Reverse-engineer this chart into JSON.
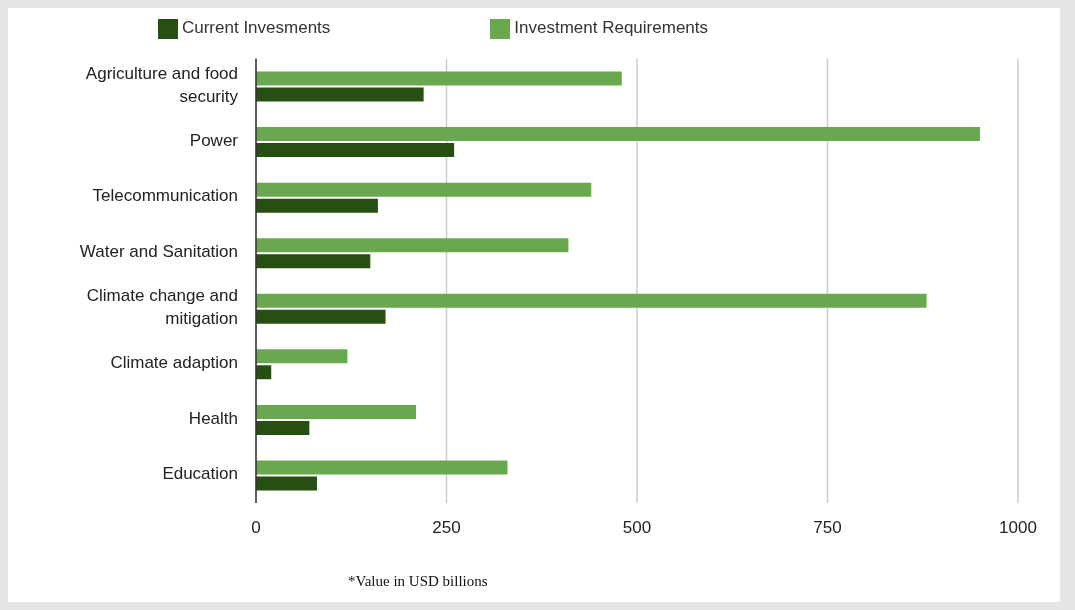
{
  "chart_data": {
    "type": "bar",
    "orientation": "horizontal",
    "categories": [
      "Agriculture and food security",
      "Power",
      "Telecommunication",
      "Water and Sanitation",
      "Climate change and mitigation",
      "Climate adaption",
      "Health",
      "Education"
    ],
    "series": [
      {
        "name": "Investment Requirements",
        "color": "#6aa84f",
        "values": [
          480,
          950,
          440,
          410,
          880,
          120,
          210,
          330
        ]
      },
      {
        "name": "Current Invesments",
        "color": "#274e13",
        "values": [
          220,
          260,
          160,
          150,
          170,
          20,
          70,
          80
        ]
      }
    ],
    "xlim": [
      0,
      1000
    ],
    "xticks": [
      0,
      250,
      500,
      750,
      1000
    ],
    "grid": "x",
    "legend": "top",
    "annotations": [
      "*Value in USD billions"
    ]
  }
}
